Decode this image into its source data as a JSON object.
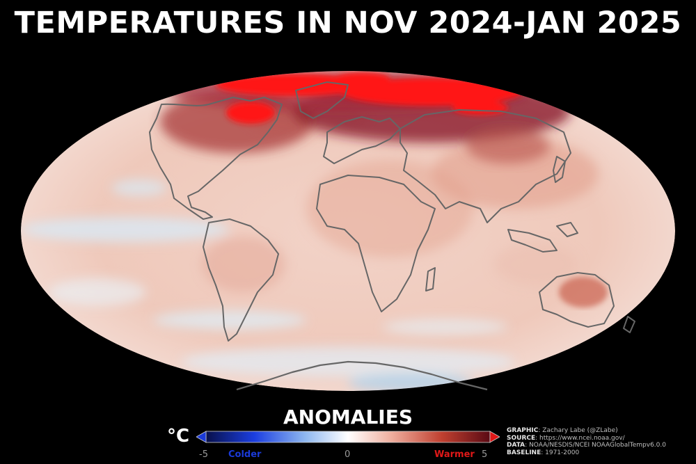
{
  "title": "TEMPERATURES IN NOV 2024-JAN 2025",
  "colorbar": {
    "label": "ANOMALIES",
    "unit": "°C",
    "min_label": "-5",
    "mid_label": "0",
    "max_label": "5",
    "cold_label": "Colder",
    "warm_label": "Warmer",
    "range": [
      -5,
      5
    ],
    "colors": [
      "#08104a",
      "#1b3ee0",
      "#8fb8f0",
      "#ffffff",
      "#f0b0a0",
      "#c04030",
      "#5a0a14"
    ]
  },
  "credits": {
    "graphic_key": "GRAPHIC",
    "graphic_val": "Zachary Labe (@ZLabe)",
    "source_key": "SOURCE",
    "source_val": "https://www.ncei.noaa.gov/",
    "data_key": "DATA",
    "data_val": "NOAA/NESDIS/NCEI NOAAGlobalTempv6.0.0",
    "baseline_key": "BASELINE",
    "baseline_val": "1971-2000"
  },
  "map": {
    "projection": "mollweide",
    "hotspots": [
      "arctic",
      "northern-canada",
      "siberia",
      "australia"
    ],
    "colors": {
      "ocean_base": "#f0cfc4",
      "land_outline": "#666666",
      "extreme_warm": "#ff1010",
      "cool": "#d6e4ee"
    }
  }
}
